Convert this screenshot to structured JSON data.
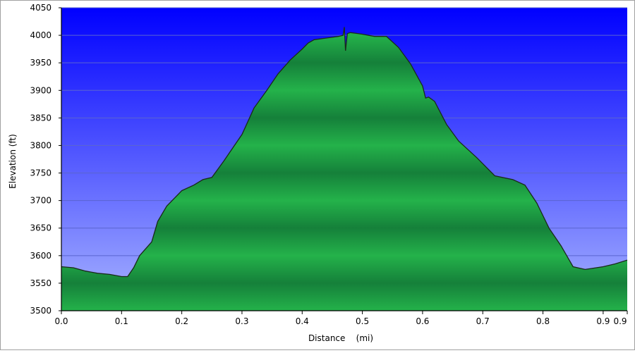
{
  "chart_data": {
    "type": "area",
    "title": "",
    "xlabel": "Distance    (mi)",
    "ylabel": "Elevation (ft)",
    "xlim": [
      0.0,
      0.94
    ],
    "ylim": [
      3500,
      4050
    ],
    "grid": true,
    "x_ticks": [
      0.0,
      0.1,
      0.2,
      0.3,
      0.4,
      0.5,
      0.6,
      0.7,
      0.8,
      0.9,
      0.94
    ],
    "x_tick_labels": [
      "0.0",
      "0.1",
      "0.2",
      "0.3",
      "0.4",
      "0.5",
      "0.6",
      "0.7",
      "0.8",
      "0.9",
      "0.9"
    ],
    "y_ticks": [
      3500,
      3550,
      3600,
      3650,
      3700,
      3750,
      3800,
      3850,
      3900,
      3950,
      4000,
      4050
    ],
    "y_tick_labels": [
      "3500",
      "3550",
      "3600",
      "3650",
      "3700",
      "3750",
      "3800",
      "3850",
      "3900",
      "3950",
      "4000",
      "4050"
    ],
    "colors": {
      "sky_top": "#0000ff",
      "sky_bottom": "#a8b4ff",
      "fill_light": "#24b24a",
      "fill_dark": "#15803a",
      "line": "#1a2a1a",
      "grid": "#5a64d0"
    },
    "series": [
      {
        "x": [
          0.0,
          0.02,
          0.04,
          0.06,
          0.08,
          0.1,
          0.11,
          0.12,
          0.13,
          0.15,
          0.16,
          0.175,
          0.2,
          0.22,
          0.235,
          0.25,
          0.27,
          0.3,
          0.32,
          0.34,
          0.36,
          0.38,
          0.4,
          0.41,
          0.42,
          0.44,
          0.46,
          0.468,
          0.47,
          0.472,
          0.475,
          0.48,
          0.5,
          0.52,
          0.54,
          0.56,
          0.58,
          0.6,
          0.605,
          0.61,
          0.62,
          0.64,
          0.66,
          0.69,
          0.72,
          0.75,
          0.77,
          0.79,
          0.81,
          0.83,
          0.85,
          0.87,
          0.9,
          0.92,
          0.94
        ],
        "y": [
          3580,
          3578,
          3572,
          3568,
          3566,
          3562,
          3562,
          3578,
          3600,
          3625,
          3662,
          3690,
          3718,
          3728,
          3738,
          3742,
          3772,
          3820,
          3868,
          3898,
          3930,
          3955,
          3975,
          3986,
          3992,
          3995,
          3998,
          4000,
          4015,
          3972,
          4003,
          4005,
          4002,
          3998,
          3998,
          3978,
          3948,
          3908,
          3886,
          3888,
          3880,
          3838,
          3808,
          3778,
          3745,
          3738,
          3728,
          3695,
          3650,
          3618,
          3580,
          3575,
          3580,
          3585,
          3592
        ]
      }
    ]
  }
}
